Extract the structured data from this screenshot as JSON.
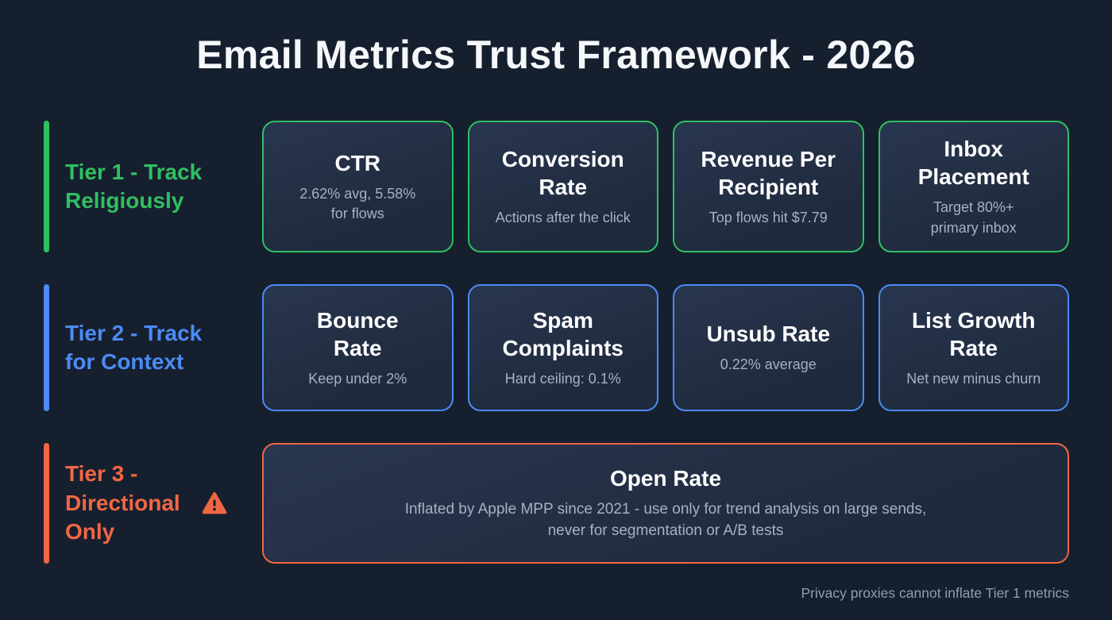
{
  "title": "Email Metrics Trust Framework - 2026",
  "footer": "Privacy proxies cannot inflate Tier 1 metrics",
  "colors": {
    "background": "#161f2e",
    "card_background": "#222e42",
    "text_primary": "#ffffff",
    "text_secondary": "#a6b1c2",
    "tier1_green": "#2fc061",
    "tier2_blue": "#4b8bf5",
    "tier3_orange": "#f06744"
  },
  "tiers": [
    {
      "label": "Tier 1 - Track\nReligiously",
      "color": "#2fc061",
      "cards": [
        {
          "title": "CTR",
          "subtitle": "2.62% avg, 5.58%\nfor flows"
        },
        {
          "title": "Conversion\nRate",
          "subtitle": "Actions after the click"
        },
        {
          "title": "Revenue Per\nRecipient",
          "subtitle": "Top flows hit $7.79"
        },
        {
          "title": "Inbox\nPlacement",
          "subtitle": "Target 80%+\nprimary inbox"
        }
      ]
    },
    {
      "label": "Tier 2 - Track\nfor Context",
      "color": "#4b8bf5",
      "cards": [
        {
          "title": "Bounce\nRate",
          "subtitle": "Keep under 2%"
        },
        {
          "title": "Spam\nComplaints",
          "subtitle": "Hard ceiling: 0.1%"
        },
        {
          "title": "Unsub Rate",
          "subtitle": "0.22% average"
        },
        {
          "title": "List Growth\nRate",
          "subtitle": "Net new minus churn"
        }
      ]
    },
    {
      "label": "Tier 3 -\nDirectional\nOnly",
      "color": "#f06744",
      "icon": "warning-triangle",
      "cards": [
        {
          "title": "Open Rate",
          "subtitle": "Inflated by Apple MPP since 2021 - use only for trend analysis on large sends,\nnever for segmentation or A/B tests"
        }
      ]
    }
  ]
}
